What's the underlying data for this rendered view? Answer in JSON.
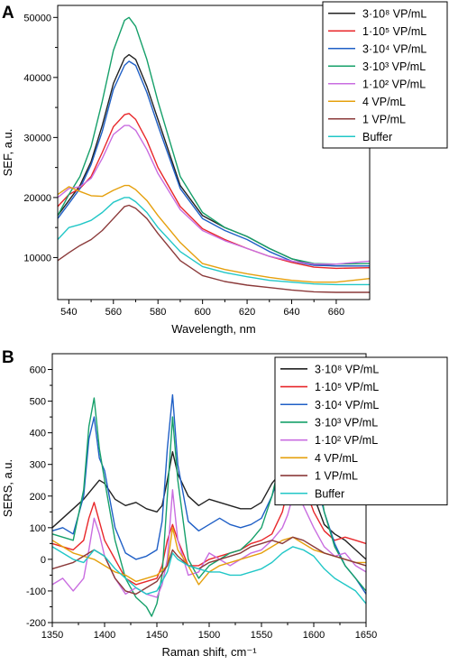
{
  "chart_data": [
    {
      "panel_label": "A",
      "type": "line",
      "xlabel": "Wavelength, nm",
      "ylabel": "SEF, a.u.",
      "xlim": [
        535,
        675
      ],
      "ylim": [
        3000,
        52000
      ],
      "xticks": [
        540,
        560,
        580,
        600,
        620,
        640,
        660
      ],
      "yticks": [
        10000,
        20000,
        30000,
        40000,
        50000
      ],
      "legend_position": "top-right",
      "series": [
        {
          "name": "3·10⁸ VP/mL",
          "color": "#222222",
          "x": [
            535,
            540,
            545,
            550,
            555,
            560,
            565,
            567,
            570,
            575,
            580,
            590,
            600,
            610,
            620,
            630,
            640,
            650,
            660,
            675
          ],
          "y": [
            17000,
            19500,
            22000,
            26000,
            32000,
            39000,
            43200,
            43800,
            43000,
            38500,
            33000,
            22000,
            17000,
            15000,
            13500,
            11500,
            9800,
            8800,
            8600,
            8600
          ]
        },
        {
          "name": "1·10⁵ VP/mL",
          "color": "#e8272a",
          "x": [
            535,
            540,
            545,
            550,
            555,
            560,
            565,
            567,
            570,
            575,
            580,
            590,
            600,
            610,
            620,
            630,
            640,
            650,
            660,
            675
          ],
          "y": [
            18500,
            20500,
            21500,
            23500,
            27500,
            31800,
            33800,
            34000,
            33000,
            29500,
            25000,
            18500,
            14800,
            13000,
            11500,
            10200,
            9200,
            8400,
            8200,
            8300
          ]
        },
        {
          "name": "3·10⁴ VP/mL",
          "color": "#1f5fc6",
          "x": [
            535,
            540,
            545,
            550,
            555,
            560,
            565,
            567,
            570,
            575,
            580,
            590,
            600,
            610,
            620,
            630,
            640,
            650,
            660,
            675
          ],
          "y": [
            16500,
            19000,
            21500,
            25500,
            31000,
            38000,
            42000,
            42700,
            42000,
            37500,
            32000,
            21500,
            16500,
            14500,
            13000,
            11000,
            9400,
            8700,
            8600,
            8600
          ]
        },
        {
          "name": "3·10³ VP/mL",
          "color": "#16a06a",
          "x": [
            535,
            540,
            545,
            550,
            555,
            560,
            565,
            567,
            570,
            575,
            580,
            590,
            600,
            610,
            620,
            630,
            640,
            650,
            660,
            675
          ],
          "y": [
            17000,
            20500,
            23500,
            28500,
            36000,
            44500,
            49500,
            50000,
            48500,
            43000,
            36000,
            23500,
            17500,
            15000,
            13500,
            11500,
            9800,
            9000,
            8900,
            9000
          ]
        },
        {
          "name": "1·10² VP/mL",
          "color": "#c96de0",
          "x": [
            535,
            540,
            545,
            550,
            555,
            560,
            565,
            567,
            570,
            575,
            580,
            590,
            600,
            610,
            620,
            630,
            640,
            650,
            660,
            675
          ],
          "y": [
            20000,
            21500,
            21800,
            23200,
            26500,
            30500,
            32000,
            32000,
            31200,
            28000,
            24000,
            18000,
            14500,
            12800,
            11500,
            10200,
            9400,
            8900,
            8900,
            9400
          ]
        },
        {
          "name": "4  VP/mL",
          "color": "#e5a00d",
          "x": [
            535,
            540,
            545,
            550,
            555,
            560,
            565,
            567,
            570,
            575,
            580,
            590,
            600,
            610,
            620,
            630,
            640,
            650,
            660,
            675
          ],
          "y": [
            20500,
            21800,
            21000,
            20300,
            20200,
            21200,
            22000,
            22000,
            21300,
            19500,
            17000,
            12500,
            9000,
            8000,
            7300,
            6700,
            6200,
            5900,
            5900,
            6500
          ]
        },
        {
          "name": "1  VP/mL",
          "color": "#8b3a3a",
          "x": [
            535,
            540,
            545,
            550,
            555,
            560,
            565,
            567,
            570,
            575,
            580,
            590,
            600,
            610,
            620,
            630,
            640,
            650,
            660,
            675
          ],
          "y": [
            9500,
            10800,
            12000,
            13000,
            14500,
            16500,
            18500,
            18700,
            18200,
            16500,
            14000,
            9500,
            7000,
            6000,
            5400,
            5000,
            4600,
            4300,
            4200,
            4200
          ]
        },
        {
          "name": "Buffer",
          "color": "#21c7c7",
          "x": [
            535,
            540,
            545,
            550,
            555,
            560,
            565,
            567,
            570,
            575,
            580,
            590,
            600,
            610,
            620,
            630,
            640,
            650,
            660,
            675
          ],
          "y": [
            13000,
            15000,
            15500,
            16200,
            17500,
            19200,
            20000,
            20000,
            19300,
            17500,
            15000,
            11000,
            8500,
            7500,
            6800,
            6200,
            5900,
            5600,
            5500,
            5500
          ]
        }
      ]
    },
    {
      "panel_label": "B",
      "type": "line",
      "xlabel": "Raman shift, cm⁻¹",
      "ylabel": "SERS, a.u.",
      "xlim": [
        1350,
        1650
      ],
      "ylim": [
        -200,
        650
      ],
      "xticks": [
        1350,
        1400,
        1450,
        1500,
        1550,
        1600,
        1650
      ],
      "yticks": [
        -200,
        -100,
        0,
        100,
        200,
        300,
        400,
        500,
        600
      ],
      "legend_position": "top-right",
      "series": [
        {
          "name": "3·10⁸ VP/mL",
          "color": "#222222",
          "x": [
            1350,
            1360,
            1370,
            1380,
            1390,
            1395,
            1400,
            1410,
            1420,
            1430,
            1440,
            1450,
            1455,
            1460,
            1465,
            1470,
            1480,
            1490,
            1500,
            1510,
            1520,
            1530,
            1540,
            1550,
            1560,
            1570,
            1575,
            1580,
            1585,
            1590,
            1600,
            1610,
            1620,
            1630,
            1640,
            1650
          ],
          "y": [
            100,
            130,
            160,
            190,
            230,
            250,
            240,
            190,
            170,
            180,
            160,
            150,
            170,
            250,
            340,
            270,
            200,
            170,
            190,
            180,
            170,
            160,
            160,
            180,
            240,
            280,
            300,
            310,
            290,
            260,
            200,
            110,
            80,
            60,
            30,
            0
          ]
        },
        {
          "name": "1·10⁵ VP/mL",
          "color": "#e8272a",
          "x": [
            1350,
            1360,
            1370,
            1380,
            1385,
            1390,
            1395,
            1400,
            1410,
            1420,
            1430,
            1440,
            1450,
            1455,
            1460,
            1465,
            1470,
            1480,
            1490,
            1500,
            1510,
            1520,
            1530,
            1540,
            1550,
            1560,
            1570,
            1575,
            1580,
            1585,
            1590,
            1600,
            1610,
            1620,
            1630,
            1640,
            1650
          ],
          "y": [
            50,
            40,
            30,
            60,
            130,
            180,
            120,
            60,
            0,
            -60,
            -80,
            -70,
            -60,
            -20,
            60,
            110,
            60,
            -20,
            -20,
            0,
            10,
            20,
            30,
            50,
            60,
            80,
            150,
            220,
            280,
            290,
            240,
            150,
            90,
            60,
            70,
            60,
            50
          ]
        },
        {
          "name": "3·10⁴ VP/mL",
          "color": "#1f5fc6",
          "x": [
            1350,
            1360,
            1370,
            1380,
            1385,
            1390,
            1395,
            1400,
            1410,
            1420,
            1430,
            1440,
            1450,
            1455,
            1460,
            1465,
            1470,
            1480,
            1490,
            1500,
            1510,
            1520,
            1530,
            1540,
            1550,
            1560,
            1570,
            1575,
            1580,
            1585,
            1590,
            1600,
            1610,
            1620,
            1630,
            1640,
            1650
          ],
          "y": [
            90,
            100,
            80,
            200,
            380,
            450,
            320,
            280,
            100,
            20,
            0,
            10,
            30,
            120,
            350,
            520,
            300,
            120,
            90,
            110,
            130,
            110,
            100,
            110,
            130,
            200,
            300,
            360,
            430,
            440,
            400,
            280,
            150,
            50,
            -20,
            -60,
            -110
          ]
        },
        {
          "name": "3·10³ VP/mL",
          "color": "#16a06a",
          "x": [
            1350,
            1360,
            1370,
            1380,
            1385,
            1390,
            1395,
            1400,
            1410,
            1420,
            1430,
            1440,
            1445,
            1450,
            1455,
            1460,
            1465,
            1470,
            1480,
            1490,
            1500,
            1510,
            1520,
            1530,
            1540,
            1550,
            1560,
            1570,
            1575,
            1580,
            1585,
            1590,
            1600,
            1610,
            1620,
            1630,
            1640,
            1650
          ],
          "y": [
            80,
            70,
            60,
            220,
            420,
            510,
            350,
            250,
            60,
            -60,
            -120,
            -150,
            -180,
            -140,
            -50,
            200,
            450,
            250,
            0,
            -60,
            -20,
            0,
            20,
            30,
            60,
            100,
            200,
            340,
            480,
            600,
            610,
            540,
            350,
            150,
            40,
            -20,
            -60,
            -100
          ]
        },
        {
          "name": "1·10² VP/mL",
          "color": "#c96de0",
          "x": [
            1350,
            1360,
            1370,
            1380,
            1385,
            1390,
            1395,
            1400,
            1410,
            1420,
            1430,
            1440,
            1450,
            1455,
            1460,
            1465,
            1470,
            1480,
            1490,
            1500,
            1510,
            1520,
            1530,
            1540,
            1550,
            1560,
            1570,
            1575,
            1580,
            1585,
            1590,
            1600,
            1610,
            1620,
            1630,
            1640,
            1650
          ],
          "y": [
            -80,
            -60,
            -100,
            -60,
            30,
            130,
            80,
            10,
            -60,
            -110,
            -90,
            -110,
            -120,
            -80,
            0,
            220,
            60,
            -50,
            -40,
            20,
            0,
            -20,
            0,
            20,
            30,
            60,
            100,
            140,
            200,
            210,
            170,
            100,
            40,
            10,
            20,
            -20,
            -40
          ]
        },
        {
          "name": "4  VP/mL",
          "color": "#e5a00d",
          "x": [
            1350,
            1360,
            1370,
            1380,
            1390,
            1400,
            1410,
            1420,
            1430,
            1440,
            1450,
            1460,
            1465,
            1470,
            1480,
            1490,
            1500,
            1510,
            1520,
            1530,
            1540,
            1550,
            1560,
            1570,
            1580,
            1590,
            1600,
            1610,
            1620,
            1630,
            1640,
            1650
          ],
          "y": [
            60,
            40,
            20,
            10,
            0,
            -20,
            -40,
            -50,
            -70,
            -60,
            -50,
            -20,
            100,
            30,
            -20,
            -80,
            -40,
            -20,
            -10,
            0,
            10,
            20,
            40,
            60,
            70,
            50,
            30,
            20,
            10,
            0,
            -10,
            -10
          ]
        },
        {
          "name": "1  VP/mL",
          "color": "#8b3a3a",
          "x": [
            1350,
            1360,
            1370,
            1380,
            1390,
            1400,
            1410,
            1420,
            1430,
            1440,
            1450,
            1460,
            1465,
            1470,
            1480,
            1490,
            1500,
            1510,
            1520,
            1530,
            1540,
            1550,
            1560,
            1570,
            1580,
            1590,
            1600,
            1610,
            1620,
            1630,
            1640,
            1650
          ],
          "y": [
            -30,
            -20,
            -10,
            10,
            30,
            10,
            -60,
            -100,
            -110,
            -90,
            -70,
            -20,
            30,
            10,
            -20,
            -30,
            -10,
            0,
            10,
            20,
            40,
            50,
            60,
            50,
            70,
            60,
            40,
            20,
            10,
            0,
            -10,
            -20
          ]
        },
        {
          "name": "Buffer",
          "color": "#21c7c7",
          "x": [
            1350,
            1360,
            1370,
            1380,
            1390,
            1400,
            1410,
            1420,
            1430,
            1440,
            1450,
            1460,
            1465,
            1470,
            1480,
            1490,
            1500,
            1510,
            1520,
            1530,
            1540,
            1550,
            1560,
            1570,
            1580,
            1590,
            1600,
            1610,
            1620,
            1630,
            1640,
            1650
          ],
          "y": [
            40,
            20,
            0,
            -10,
            30,
            10,
            -30,
            -60,
            -90,
            -110,
            -100,
            -40,
            20,
            0,
            -20,
            -30,
            -40,
            -40,
            -50,
            -50,
            -40,
            -30,
            -10,
            20,
            40,
            30,
            10,
            -30,
            -60,
            -80,
            -100,
            -140
          ]
        }
      ]
    }
  ]
}
